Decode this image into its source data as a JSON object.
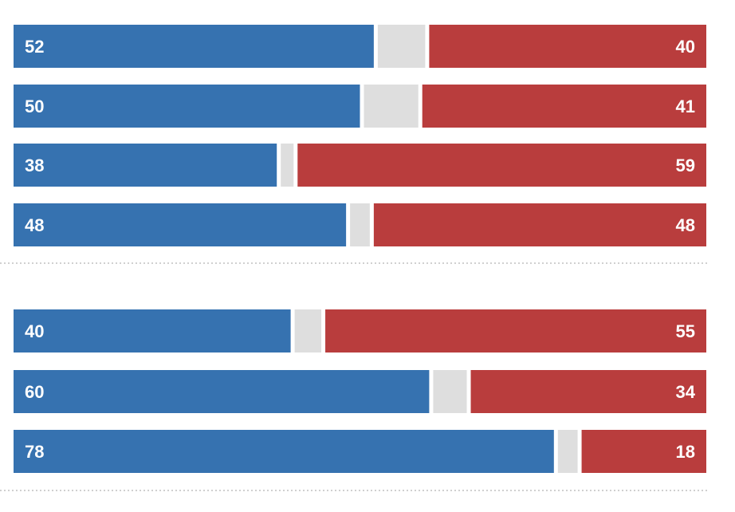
{
  "chart_data": {
    "type": "bar",
    "orientation": "horizontal",
    "stacked": true,
    "scale_max": 100,
    "grid": false,
    "groups": [
      {
        "rows": [
          {
            "left": 52,
            "right": 40
          },
          {
            "left": 50,
            "right": 41
          },
          {
            "left": 38,
            "right": 59
          },
          {
            "left": 48,
            "right": 48
          }
        ]
      },
      {
        "rows": [
          {
            "left": 40,
            "right": 55
          },
          {
            "left": 60,
            "right": 34
          },
          {
            "left": 78,
            "right": 18
          }
        ]
      }
    ],
    "colors": {
      "left": "#3672b0",
      "middle": "#dedede",
      "right": "#b93d3d",
      "divider": "#b5b5b5",
      "label": "#ffffff"
    }
  }
}
